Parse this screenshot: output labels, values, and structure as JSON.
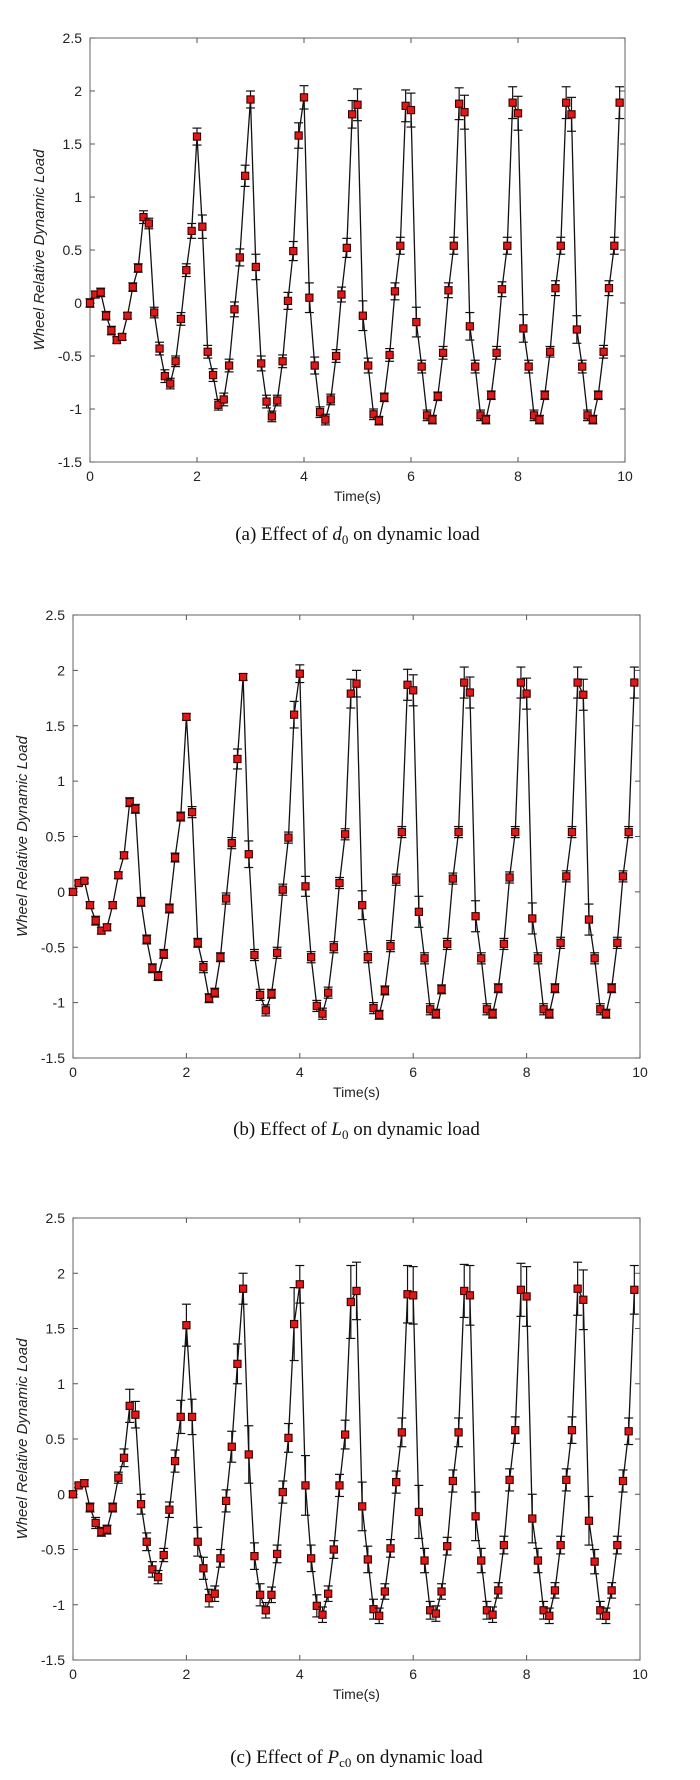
{
  "chart_data": [
    {
      "type": "line",
      "panel": "a",
      "caption_prefix": "(a) Effect of ",
      "caption_var": "d",
      "caption_sub": "0",
      "caption_suffix": " on dynamic load",
      "xlabel": "Time(s)",
      "ylabel": "Wheel Relative Dynamic Load",
      "xlim": [
        0,
        10
      ],
      "ylim": [
        -1.5,
        2.5
      ],
      "xticks": [
        0,
        2,
        4,
        6,
        8,
        10
      ],
      "yticks": [
        -1.5,
        -1,
        -0.5,
        0,
        0.5,
        1,
        1.5,
        2,
        2.5
      ],
      "xtick_labels": [
        "0",
        "2",
        "4",
        "6",
        "8",
        "10"
      ],
      "ytick_labels": [
        "-1.5",
        "-1",
        "-0.5",
        "0",
        "0.5",
        "1",
        "1.5",
        "2",
        "2.5"
      ],
      "grid": false,
      "series": [
        {
          "name": "d0",
          "x": [
            0.0,
            0.1,
            0.2,
            0.3,
            0.4,
            0.5,
            0.6,
            0.7,
            0.8,
            0.9,
            1.0,
            1.1,
            1.2,
            1.3,
            1.4,
            1.5,
            1.6,
            1.7,
            1.8,
            1.9,
            2.0,
            2.1,
            2.2,
            2.3,
            2.4,
            2.5,
            2.6,
            2.7,
            2.8,
            2.9,
            3.0,
            3.1,
            3.2,
            3.3,
            3.4,
            3.5,
            3.6,
            3.7,
            3.8,
            3.9,
            4.0,
            4.1,
            4.2,
            4.3,
            4.4,
            4.5,
            4.6,
            4.7,
            4.8,
            4.9,
            5.0,
            5.1,
            5.2,
            5.3,
            5.4,
            5.5,
            5.6,
            5.7,
            5.8,
            5.9,
            6.0,
            6.1,
            6.2,
            6.3,
            6.4,
            6.5,
            6.6,
            6.7,
            6.8,
            6.9,
            7.0,
            7.1,
            7.2,
            7.3,
            7.4,
            7.5,
            7.6,
            7.7,
            7.8,
            7.9,
            8.0,
            8.1,
            8.2,
            8.3,
            8.4,
            8.5,
            8.6,
            8.7,
            8.8,
            8.9,
            9.0,
            9.1,
            9.2,
            9.3,
            9.4,
            9.5,
            9.6,
            9.7,
            9.8,
            9.9
          ],
          "y": [
            0.0,
            0.08,
            0.1,
            -0.12,
            -0.26,
            -0.35,
            -0.32,
            -0.12,
            0.15,
            0.33,
            0.81,
            0.75,
            -0.09,
            -0.43,
            -0.69,
            -0.76,
            -0.55,
            -0.15,
            0.31,
            0.68,
            1.57,
            0.72,
            -0.46,
            -0.68,
            -0.96,
            -0.91,
            -0.59,
            -0.06,
            0.43,
            1.2,
            1.92,
            0.34,
            -0.57,
            -0.93,
            -1.07,
            -0.92,
            -0.55,
            0.02,
            0.49,
            1.58,
            1.94,
            0.05,
            -0.59,
            -1.03,
            -1.1,
            -0.91,
            -0.5,
            0.08,
            0.52,
            1.78,
            1.87,
            -0.12,
            -0.59,
            -1.05,
            -1.11,
            -0.89,
            -0.49,
            0.11,
            0.54,
            1.86,
            1.82,
            -0.18,
            -0.6,
            -1.06,
            -1.1,
            -0.88,
            -0.47,
            0.12,
            0.54,
            1.88,
            1.8,
            -0.22,
            -0.6,
            -1.06,
            -1.1,
            -0.87,
            -0.47,
            0.13,
            0.54,
            1.89,
            1.79,
            -0.24,
            -0.6,
            -1.06,
            -1.1,
            -0.87,
            -0.46,
            0.14,
            0.54,
            1.89,
            1.78,
            -0.25,
            -0.6,
            -1.06,
            -1.1,
            -0.87,
            -0.46,
            0.14,
            0.54,
            1.89
          ],
          "err": [
            0.04,
            0.03,
            0.04,
            0.04,
            0.04,
            0.03,
            0.03,
            0.03,
            0.04,
            0.04,
            0.06,
            0.05,
            0.05,
            0.06,
            0.06,
            0.05,
            0.05,
            0.06,
            0.06,
            0.07,
            0.08,
            0.11,
            0.06,
            0.06,
            0.05,
            0.06,
            0.06,
            0.07,
            0.08,
            0.1,
            0.08,
            0.12,
            0.07,
            0.06,
            0.05,
            0.05,
            0.06,
            0.08,
            0.09,
            0.12,
            0.11,
            0.14,
            0.08,
            0.05,
            0.05,
            0.05,
            0.06,
            0.07,
            0.09,
            0.13,
            0.15,
            0.14,
            0.07,
            0.05,
            0.04,
            0.04,
            0.06,
            0.08,
            0.08,
            0.15,
            0.16,
            0.14,
            0.06,
            0.05,
            0.04,
            0.04,
            0.06,
            0.07,
            0.08,
            0.15,
            0.16,
            0.13,
            0.06,
            0.05,
            0.04,
            0.04,
            0.06,
            0.07,
            0.08,
            0.15,
            0.16,
            0.13,
            0.06,
            0.05,
            0.04,
            0.04,
            0.05,
            0.07,
            0.08,
            0.15,
            0.16,
            0.13,
            0.06,
            0.05,
            0.04,
            0.04,
            0.06,
            0.07,
            0.08,
            0.15
          ]
        }
      ]
    },
    {
      "type": "line",
      "panel": "b",
      "caption_prefix": "(b) Effect of ",
      "caption_var": "L",
      "caption_sub": "0",
      "caption_suffix": " on dynamic load",
      "xlabel": "Time(s)",
      "ylabel": "Wheel Relative Dynamic Load",
      "xlim": [
        0,
        10
      ],
      "ylim": [
        -1.5,
        2.5
      ],
      "xticks": [
        0,
        2,
        4,
        6,
        8,
        10
      ],
      "yticks": [
        -1.5,
        -1,
        -0.5,
        0,
        0.5,
        1,
        1.5,
        2,
        2.5
      ],
      "xtick_labels": [
        "0",
        "2",
        "4",
        "6",
        "8",
        "10"
      ],
      "ytick_labels": [
        "-1.5",
        "-1",
        "-0.5",
        "0",
        "0.5",
        "1",
        "1.5",
        "2",
        "2.5"
      ],
      "grid": false,
      "series": [
        {
          "name": "L0",
          "x": [
            0.0,
            0.1,
            0.2,
            0.3,
            0.4,
            0.5,
            0.6,
            0.7,
            0.8,
            0.9,
            1.0,
            1.1,
            1.2,
            1.3,
            1.4,
            1.5,
            1.6,
            1.7,
            1.8,
            1.9,
            2.0,
            2.1,
            2.2,
            2.3,
            2.4,
            2.5,
            2.6,
            2.7,
            2.8,
            2.9,
            3.0,
            3.1,
            3.2,
            3.3,
            3.4,
            3.5,
            3.6,
            3.7,
            3.8,
            3.9,
            4.0,
            4.1,
            4.2,
            4.3,
            4.4,
            4.5,
            4.6,
            4.7,
            4.8,
            4.9,
            5.0,
            5.1,
            5.2,
            5.3,
            5.4,
            5.5,
            5.6,
            5.7,
            5.8,
            5.9,
            6.0,
            6.1,
            6.2,
            6.3,
            6.4,
            6.5,
            6.6,
            6.7,
            6.8,
            6.9,
            7.0,
            7.1,
            7.2,
            7.3,
            7.4,
            7.5,
            7.6,
            7.7,
            7.8,
            7.9,
            8.0,
            8.1,
            8.2,
            8.3,
            8.4,
            8.5,
            8.6,
            8.7,
            8.8,
            8.9,
            9.0,
            9.1,
            9.2,
            9.3,
            9.4,
            9.5,
            9.6,
            9.7,
            9.8,
            9.9
          ],
          "y": [
            0.0,
            0.08,
            0.1,
            -0.12,
            -0.26,
            -0.35,
            -0.32,
            -0.12,
            0.15,
            0.33,
            0.81,
            0.75,
            -0.09,
            -0.43,
            -0.69,
            -0.76,
            -0.56,
            -0.15,
            0.31,
            0.68,
            1.58,
            0.72,
            -0.46,
            -0.68,
            -0.96,
            -0.91,
            -0.59,
            -0.06,
            0.44,
            1.2,
            1.94,
            0.34,
            -0.57,
            -0.93,
            -1.07,
            -0.92,
            -0.55,
            0.02,
            0.49,
            1.6,
            1.97,
            0.05,
            -0.59,
            -1.03,
            -1.1,
            -0.91,
            -0.5,
            0.08,
            0.52,
            1.79,
            1.88,
            -0.12,
            -0.59,
            -1.05,
            -1.11,
            -0.89,
            -0.49,
            0.11,
            0.54,
            1.87,
            1.82,
            -0.18,
            -0.6,
            -1.06,
            -1.1,
            -0.88,
            -0.47,
            0.12,
            0.54,
            1.89,
            1.8,
            -0.22,
            -0.6,
            -1.06,
            -1.1,
            -0.87,
            -0.47,
            0.13,
            0.54,
            1.89,
            1.79,
            -0.24,
            -0.6,
            -1.06,
            -1.1,
            -0.87,
            -0.46,
            0.14,
            0.54,
            1.89,
            1.78,
            -0.25,
            -0.6,
            -1.06,
            -1.1,
            -0.87,
            -0.46,
            0.14,
            0.54,
            1.89
          ],
          "err": [
            0.03,
            0.02,
            0.02,
            0.03,
            0.04,
            0.03,
            0.03,
            0.03,
            0.03,
            0.03,
            0.04,
            0.04,
            0.04,
            0.04,
            0.04,
            0.04,
            0.04,
            0.04,
            0.04,
            0.04,
            0.03,
            0.05,
            0.04,
            0.05,
            0.04,
            0.04,
            0.04,
            0.05,
            0.05,
            0.09,
            0.03,
            0.12,
            0.05,
            0.05,
            0.05,
            0.04,
            0.05,
            0.05,
            0.05,
            0.12,
            0.08,
            0.09,
            0.05,
            0.05,
            0.05,
            0.05,
            0.05,
            0.05,
            0.05,
            0.13,
            0.12,
            0.13,
            0.05,
            0.05,
            0.04,
            0.04,
            0.05,
            0.05,
            0.05,
            0.14,
            0.14,
            0.14,
            0.05,
            0.05,
            0.04,
            0.04,
            0.05,
            0.05,
            0.05,
            0.14,
            0.14,
            0.14,
            0.05,
            0.05,
            0.04,
            0.04,
            0.05,
            0.05,
            0.05,
            0.14,
            0.14,
            0.14,
            0.05,
            0.05,
            0.04,
            0.04,
            0.05,
            0.05,
            0.05,
            0.14,
            0.14,
            0.14,
            0.05,
            0.05,
            0.04,
            0.04,
            0.05,
            0.05,
            0.05,
            0.14
          ]
        }
      ]
    },
    {
      "type": "line",
      "panel": "c",
      "caption_prefix": "(c) Effect of ",
      "caption_var": "P",
      "caption_sub": "c0",
      "caption_suffix": " on dynamic load",
      "xlabel": "Time(s)",
      "ylabel": "Wheel Relative Dynamic Load",
      "xlim": [
        0,
        10
      ],
      "ylim": [
        -1.5,
        2.5
      ],
      "xticks": [
        0,
        2,
        4,
        6,
        8,
        10
      ],
      "yticks": [
        -1.5,
        -1,
        -0.5,
        0,
        0.5,
        1,
        1.5,
        2,
        2.5
      ],
      "xtick_labels": [
        "0",
        "2",
        "4",
        "6",
        "8",
        "10"
      ],
      "ytick_labels": [
        "-1.5",
        "-1",
        "-0.5",
        "0",
        "0.5",
        "1",
        "1.5",
        "2",
        "2.5"
      ],
      "grid": false,
      "series": [
        {
          "name": "Pc0",
          "x": [
            0.0,
            0.1,
            0.2,
            0.3,
            0.4,
            0.5,
            0.6,
            0.7,
            0.8,
            0.9,
            1.0,
            1.1,
            1.2,
            1.3,
            1.4,
            1.5,
            1.6,
            1.7,
            1.8,
            1.9,
            2.0,
            2.1,
            2.2,
            2.3,
            2.4,
            2.5,
            2.6,
            2.7,
            2.8,
            2.9,
            3.0,
            3.1,
            3.2,
            3.3,
            3.4,
            3.5,
            3.6,
            3.7,
            3.8,
            3.9,
            4.0,
            4.1,
            4.2,
            4.3,
            4.4,
            4.5,
            4.6,
            4.7,
            4.8,
            4.9,
            5.0,
            5.1,
            5.2,
            5.3,
            5.4,
            5.5,
            5.6,
            5.7,
            5.8,
            5.9,
            6.0,
            6.1,
            6.2,
            6.3,
            6.4,
            6.5,
            6.6,
            6.7,
            6.8,
            6.9,
            7.0,
            7.1,
            7.2,
            7.3,
            7.4,
            7.5,
            7.6,
            7.7,
            7.8,
            7.9,
            8.0,
            8.1,
            8.2,
            8.3,
            8.4,
            8.5,
            8.6,
            8.7,
            8.8,
            8.9,
            9.0,
            9.1,
            9.2,
            9.3,
            9.4,
            9.5,
            9.6,
            9.7,
            9.8,
            9.9
          ],
          "y": [
            0.0,
            0.08,
            0.1,
            -0.12,
            -0.26,
            -0.34,
            -0.32,
            -0.12,
            0.15,
            0.33,
            0.8,
            0.72,
            -0.09,
            -0.43,
            -0.68,
            -0.75,
            -0.55,
            -0.14,
            0.3,
            0.7,
            1.53,
            0.7,
            -0.43,
            -0.67,
            -0.94,
            -0.9,
            -0.58,
            -0.06,
            0.43,
            1.18,
            1.86,
            0.36,
            -0.56,
            -0.91,
            -1.05,
            -0.91,
            -0.54,
            0.02,
            0.51,
            1.54,
            1.9,
            0.08,
            -0.58,
            -1.01,
            -1.09,
            -0.9,
            -0.5,
            0.08,
            0.54,
            1.74,
            1.84,
            -0.11,
            -0.59,
            -1.04,
            -1.1,
            -0.88,
            -0.49,
            0.11,
            0.56,
            1.81,
            1.8,
            -0.16,
            -0.6,
            -1.05,
            -1.08,
            -0.88,
            -0.47,
            0.12,
            0.56,
            1.84,
            1.8,
            -0.2,
            -0.6,
            -1.05,
            -1.09,
            -0.87,
            -0.46,
            0.13,
            0.58,
            1.85,
            1.79,
            -0.22,
            -0.6,
            -1.05,
            -1.1,
            -0.87,
            -0.46,
            0.13,
            0.58,
            1.86,
            1.76,
            -0.24,
            -0.61,
            -1.05,
            -1.1,
            -0.87,
            -0.46,
            0.12,
            0.57,
            1.85
          ],
          "err": [
            0.03,
            0.02,
            0.03,
            0.04,
            0.05,
            0.04,
            0.04,
            0.04,
            0.05,
            0.08,
            0.15,
            0.12,
            0.09,
            0.08,
            0.07,
            0.06,
            0.06,
            0.07,
            0.1,
            0.15,
            0.19,
            0.16,
            0.13,
            0.1,
            0.08,
            0.07,
            0.08,
            0.1,
            0.14,
            0.18,
            0.14,
            0.26,
            0.12,
            0.1,
            0.07,
            0.07,
            0.08,
            0.1,
            0.13,
            0.33,
            0.17,
            0.27,
            0.12,
            0.1,
            0.07,
            0.07,
            0.08,
            0.1,
            0.13,
            0.33,
            0.26,
            0.22,
            0.12,
            0.09,
            0.07,
            0.07,
            0.08,
            0.1,
            0.13,
            0.26,
            0.26,
            0.24,
            0.11,
            0.08,
            0.07,
            0.07,
            0.08,
            0.1,
            0.13,
            0.24,
            0.27,
            0.22,
            0.11,
            0.08,
            0.07,
            0.07,
            0.08,
            0.1,
            0.12,
            0.24,
            0.27,
            0.22,
            0.11,
            0.08,
            0.07,
            0.07,
            0.08,
            0.1,
            0.12,
            0.24,
            0.27,
            0.22,
            0.11,
            0.08,
            0.07,
            0.07,
            0.08,
            0.1,
            0.12,
            0.22
          ]
        }
      ]
    }
  ]
}
